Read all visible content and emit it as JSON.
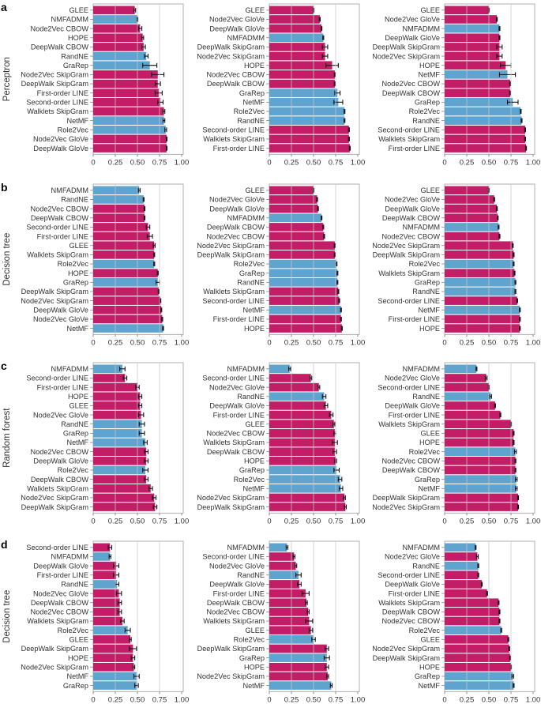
{
  "chart_data": {
    "type": "bar",
    "orientation": "horizontal",
    "xlim": [
      0,
      1
    ],
    "xticks": [
      "0",
      "0.25",
      "0.50",
      "0.75",
      "1.00"
    ],
    "grid": true,
    "colors": {
      "magenta": "#c21d66",
      "blue": "#5fa3cf",
      "grid": "#c8c8c8",
      "frame": "#b0b0b0"
    },
    "blue_methods": [
      "NMFADMM",
      "RandNE",
      "GraRep",
      "NetMF",
      "Role2Vec"
    ],
    "rows": [
      {
        "letter": "a",
        "ylabel": "Perceptron",
        "panels": [
          [
            [
              "GLEE",
              0.47,
              0.01
            ],
            [
              "NMFADMM",
              0.5,
              0.005
            ],
            [
              "Node2Vec CBOW",
              0.53,
              0.02
            ],
            [
              "HOPE",
              0.56,
              0.01
            ],
            [
              "DeepWalk CBOW",
              0.57,
              0.02
            ],
            [
              "RandNE",
              0.6,
              0.02
            ],
            [
              "GraRep",
              0.64,
              0.08
            ],
            [
              "Node2Vec SkipGram",
              0.73,
              0.07
            ],
            [
              "DeepWalk SkipGram",
              0.73,
              0.03
            ],
            [
              "First-order LINE",
              0.74,
              0.04
            ],
            [
              "Second-order LINE",
              0.76,
              0.03
            ],
            [
              "Walklets SkipGram",
              0.8,
              0.01
            ],
            [
              "NetMF",
              0.8,
              0.01
            ],
            [
              "Role2Vec",
              0.82,
              0.01
            ],
            [
              "Node2Vec GloVe",
              0.83,
              0.005
            ],
            [
              "DeepWalk GloVe",
              0.83,
              0.005
            ]
          ],
          [
            [
              "GLEE",
              0.5,
              0.005
            ],
            [
              "Node2Vec GloVe",
              0.57,
              0.005
            ],
            [
              "DeepWalk GloVe",
              0.59,
              0.005
            ],
            [
              "NMFADMM",
              0.61,
              0.005
            ],
            [
              "DeepWalk SkipGram",
              0.63,
              0.03
            ],
            [
              "Node2Vec SkipGram",
              0.63,
              0.03
            ],
            [
              "HOPE",
              0.71,
              0.07
            ],
            [
              "Node2Vec CBOW",
              0.74,
              0.005
            ],
            [
              "DeepWalk CBOW",
              0.74,
              0.005
            ],
            [
              "GraRep",
              0.77,
              0.03
            ],
            [
              "NetMF",
              0.78,
              0.05
            ],
            [
              "Role2Vec",
              0.85,
              0.005
            ],
            [
              "RandNE",
              0.85,
              0.005
            ],
            [
              "Second-order LINE",
              0.9,
              0.005
            ],
            [
              "Walklets SkipGram",
              0.9,
              0.005
            ],
            [
              "First-order LINE",
              0.91,
              0.005
            ]
          ],
          [
            [
              "GLEE",
              0.5,
              0.005
            ],
            [
              "Node2Vec GloVe",
              0.59,
              0.005
            ],
            [
              "NMFADMM",
              0.62,
              0.005
            ],
            [
              "DeepWalk GloVe",
              0.62,
              0.005
            ],
            [
              "DeepWalk SkipGram",
              0.62,
              0.03
            ],
            [
              "Node2Vec SkipGram",
              0.62,
              0.03
            ],
            [
              "HOPE",
              0.69,
              0.06
            ],
            [
              "NetMF",
              0.71,
              0.09
            ],
            [
              "Node2Vec CBOW",
              0.74,
              0.005
            ],
            [
              "DeepWalk CBOW",
              0.74,
              0.005
            ],
            [
              "GraRep",
              0.77,
              0.06
            ],
            [
              "Role2Vec",
              0.86,
              0.005
            ],
            [
              "RandNE",
              0.87,
              0.005
            ],
            [
              "Second-order LINE",
              0.91,
              0.005
            ],
            [
              "Walklets SkipGram",
              0.91,
              0.005
            ],
            [
              "First-order LINE",
              0.92,
              0.005
            ]
          ]
        ]
      },
      {
        "letter": "b",
        "ylabel": "Decision tree",
        "panels": [
          [
            [
              "NMFADMM",
              0.52,
              0.01
            ],
            [
              "RandNE",
              0.57,
              0.005
            ],
            [
              "Node2Vec CBOW",
              0.58,
              0.005
            ],
            [
              "DeepWalk CBOW",
              0.58,
              0.005
            ],
            [
              "Second-order LINE",
              0.62,
              0.02
            ],
            [
              "First-order LINE",
              0.64,
              0.03
            ],
            [
              "GLEE",
              0.69,
              0.01
            ],
            [
              "Walklets SkipGram",
              0.69,
              0.005
            ],
            [
              "Role2Vec",
              0.69,
              0.005
            ],
            [
              "HOPE",
              0.73,
              0.005
            ],
            [
              "GraRep",
              0.73,
              0.02
            ],
            [
              "DeepWalk SkipGram",
              0.74,
              0.005
            ],
            [
              "Node2Vec SkipGram",
              0.76,
              0.005
            ],
            [
              "DeepWalk GloVe",
              0.77,
              0.005
            ],
            [
              "Node2Vec GloVe",
              0.78,
              0.005
            ],
            [
              "NetMF",
              0.79,
              0.005
            ]
          ],
          [
            [
              "GLEE",
              0.5,
              0.005
            ],
            [
              "Node2Vec GloVe",
              0.54,
              0.005
            ],
            [
              "DeepWalk GloVe",
              0.55,
              0.005
            ],
            [
              "NMFADMM",
              0.59,
              0.005
            ],
            [
              "DeepWalk CBOW",
              0.61,
              0.005
            ],
            [
              "Node2Vec CBOW",
              0.62,
              0.005
            ],
            [
              "Node2Vec SkipGram",
              0.74,
              0.005
            ],
            [
              "DeepWalk SkipGram",
              0.74,
              0.005
            ],
            [
              "Role2Vec",
              0.76,
              0.005
            ],
            [
              "GraRep",
              0.77,
              0.005
            ],
            [
              "RandNE",
              0.77,
              0.005
            ],
            [
              "Walklets SkipGram",
              0.78,
              0.005
            ],
            [
              "Second-order LINE",
              0.79,
              0.005
            ],
            [
              "NetMF",
              0.81,
              0.005
            ],
            [
              "First-order LINE",
              0.81,
              0.005
            ],
            [
              "HOPE",
              0.82,
              0.005
            ]
          ],
          [
            [
              "GLEE",
              0.5,
              0.005
            ],
            [
              "Node2Vec GloVe",
              0.56,
              0.005
            ],
            [
              "DeepWalk GloVe",
              0.59,
              0.005
            ],
            [
              "DeepWalk CBOW",
              0.6,
              0.005
            ],
            [
              "NMFADMM",
              0.61,
              0.005
            ],
            [
              "Node2Vec CBOW",
              0.62,
              0.005
            ],
            [
              "Node2Vec SkipGram",
              0.77,
              0.005
            ],
            [
              "DeepWalk SkipGram",
              0.78,
              0.005
            ],
            [
              "Role2Vec",
              0.78,
              0.005
            ],
            [
              "Walklets SkipGram",
              0.79,
              0.005
            ],
            [
              "GraRep",
              0.8,
              0.005
            ],
            [
              "RandNE",
              0.8,
              0.005
            ],
            [
              "Second-order LINE",
              0.82,
              0.005
            ],
            [
              "NetMF",
              0.85,
              0.005
            ],
            [
              "First-order LINE",
              0.85,
              0.005
            ],
            [
              "HOPE",
              0.85,
              0.005
            ]
          ]
        ]
      },
      {
        "letter": "c",
        "ylabel": "Random forest",
        "panels": [
          [
            [
              "NMFADMM",
              0.33,
              0.03
            ],
            [
              "Second-order LINE",
              0.36,
              0.02
            ],
            [
              "First-order LINE",
              0.5,
              0.02
            ],
            [
              "HOPE",
              0.53,
              0.02
            ],
            [
              "GLEE",
              0.53,
              0.02
            ],
            [
              "Node2Vec GloVe",
              0.54,
              0.03
            ],
            [
              "RandNE",
              0.55,
              0.03
            ],
            [
              "GraRep",
              0.55,
              0.03
            ],
            [
              "NetMF",
              0.59,
              0.02
            ],
            [
              "Node2Vec CBOW",
              0.6,
              0.02
            ],
            [
              "DeepWalk GloVe",
              0.6,
              0.02
            ],
            [
              "Role2Vec",
              0.59,
              0.03
            ],
            [
              "DeepWalk CBOW",
              0.6,
              0.02
            ],
            [
              "Walklets SkipGram",
              0.65,
              0.02
            ],
            [
              "Node2Vec SkipGram",
              0.69,
              0.02
            ],
            [
              "DeepWalk SkipGram",
              0.7,
              0.02
            ]
          ],
          [
            [
              "NMFADMM",
              0.23,
              0.01
            ],
            [
              "Second-order LINE",
              0.47,
              0.01
            ],
            [
              "Node2Vec GloVe",
              0.56,
              0.01
            ],
            [
              "RandNE",
              0.62,
              0.02
            ],
            [
              "DeepWalk GloVe",
              0.64,
              0.02
            ],
            [
              "First-order LINE",
              0.7,
              0.02
            ],
            [
              "GLEE",
              0.73,
              0.01
            ],
            [
              "Node2Vec CBOW",
              0.74,
              0.01
            ],
            [
              "Walklets SkipGram",
              0.74,
              0.03
            ],
            [
              "DeepWalk CBOW",
              0.74,
              0.02
            ],
            [
              "HOPE",
              0.75,
              0.01
            ],
            [
              "GraRep",
              0.76,
              0.03
            ],
            [
              "Role2Vec",
              0.8,
              0.02
            ],
            [
              "NetMF",
              0.81,
              0.02
            ],
            [
              "Node2Vec SkipGram",
              0.85,
              0.01
            ],
            [
              "DeepWalk SkipGram",
              0.86,
              0.01
            ]
          ],
          [
            [
              "NMFADMM",
              0.36,
              0.005
            ],
            [
              "Node2Vec GloVe",
              0.47,
              0.01
            ],
            [
              "Second-order LINE",
              0.5,
              0.005
            ],
            [
              "RandNE",
              0.52,
              0.01
            ],
            [
              "DeepWalk GloVe",
              0.57,
              0.005
            ],
            [
              "First-order LINE",
              0.63,
              0.005
            ],
            [
              "Walklets SkipGram",
              0.75,
              0.005
            ],
            [
              "GLEE",
              0.78,
              0.005
            ],
            [
              "HOPE",
              0.78,
              0.005
            ],
            [
              "Role2Vec",
              0.8,
              0.01
            ],
            [
              "Node2Vec CBOW",
              0.8,
              0.005
            ],
            [
              "DeepWalk CBOW",
              0.8,
              0.005
            ],
            [
              "GraRep",
              0.81,
              0.01
            ],
            [
              "NetMF",
              0.81,
              0.01
            ],
            [
              "DeepWalk SkipGram",
              0.83,
              0.005
            ],
            [
              "Node2Vec SkipGram",
              0.83,
              0.005
            ]
          ]
        ]
      },
      {
        "letter": "d",
        "ylabel": "Decision tree",
        "panels": [
          [
            [
              "Second-order LINE",
              0.19,
              0.02
            ],
            [
              "NMFADMM",
              0.19,
              0.01
            ],
            [
              "DeepWalk GloVe",
              0.26,
              0.03
            ],
            [
              "First-order LINE",
              0.26,
              0.03
            ],
            [
              "RandNE",
              0.27,
              0.02
            ],
            [
              "Node2Vec GloVe",
              0.29,
              0.03
            ],
            [
              "DeepWalk CBOW",
              0.3,
              0.02
            ],
            [
              "Node2Vec CBOW",
              0.3,
              0.02
            ],
            [
              "Walklets SkipGram",
              0.33,
              0.02
            ],
            [
              "Role2Vec",
              0.39,
              0.03
            ],
            [
              "GLEE",
              0.42,
              0.01
            ],
            [
              "DeepWalk SkipGram",
              0.45,
              0.04
            ],
            [
              "HOPE",
              0.45,
              0.02
            ],
            [
              "Node2Vec SkipGram",
              0.46,
              0.01
            ],
            [
              "NetMF",
              0.49,
              0.03
            ],
            [
              "GraRep",
              0.49,
              0.02
            ]
          ],
          [
            [
              "NMFADMM",
              0.2,
              0.01
            ],
            [
              "Second-order LINE",
              0.28,
              0.01
            ],
            [
              "Node2Vec GloVe",
              0.3,
              0.01
            ],
            [
              "RandNE",
              0.33,
              0.03
            ],
            [
              "DeepWalk GloVe",
              0.34,
              0.02
            ],
            [
              "First-order LINE",
              0.41,
              0.04
            ],
            [
              "DeepWalk CBOW",
              0.42,
              0.01
            ],
            [
              "Node2Vec CBOW",
              0.44,
              0.01
            ],
            [
              "Walklets SkipGram",
              0.45,
              0.04
            ],
            [
              "GLEE",
              0.47,
              0.02
            ],
            [
              "Role2Vec",
              0.5,
              0.02
            ],
            [
              "DeepWalk SkipGram",
              0.65,
              0.02
            ],
            [
              "GraRep",
              0.65,
              0.03
            ],
            [
              "HOPE",
              0.65,
              0.02
            ],
            [
              "Node2Vec SkipGram",
              0.66,
              0.01
            ],
            [
              "NetMF",
              0.7,
              0.01
            ]
          ],
          [
            [
              "NMFADMM",
              0.35,
              0.005
            ],
            [
              "Node2Vec GloVe",
              0.37,
              0.01
            ],
            [
              "RandNE",
              0.38,
              0.005
            ],
            [
              "Second-order LINE",
              0.38,
              0.005
            ],
            [
              "DeepWalk GloVe",
              0.42,
              0.005
            ],
            [
              "First-order LINE",
              0.48,
              0.005
            ],
            [
              "Walklets SkipGram",
              0.61,
              0.005
            ],
            [
              "DeepWalk CBOW",
              0.62,
              0.005
            ],
            [
              "Node2Vec CBOW",
              0.62,
              0.005
            ],
            [
              "Role2Vec",
              0.64,
              0.005
            ],
            [
              "GLEE",
              0.72,
              0.005
            ],
            [
              "Node2Vec SkipGram",
              0.73,
              0.005
            ],
            [
              "DeepWalk SkipGram",
              0.74,
              0.005
            ],
            [
              "HOPE",
              0.75,
              0.005
            ],
            [
              "GraRep",
              0.77,
              0.01
            ],
            [
              "NetMF",
              0.78,
              0.005
            ]
          ]
        ]
      }
    ]
  }
}
